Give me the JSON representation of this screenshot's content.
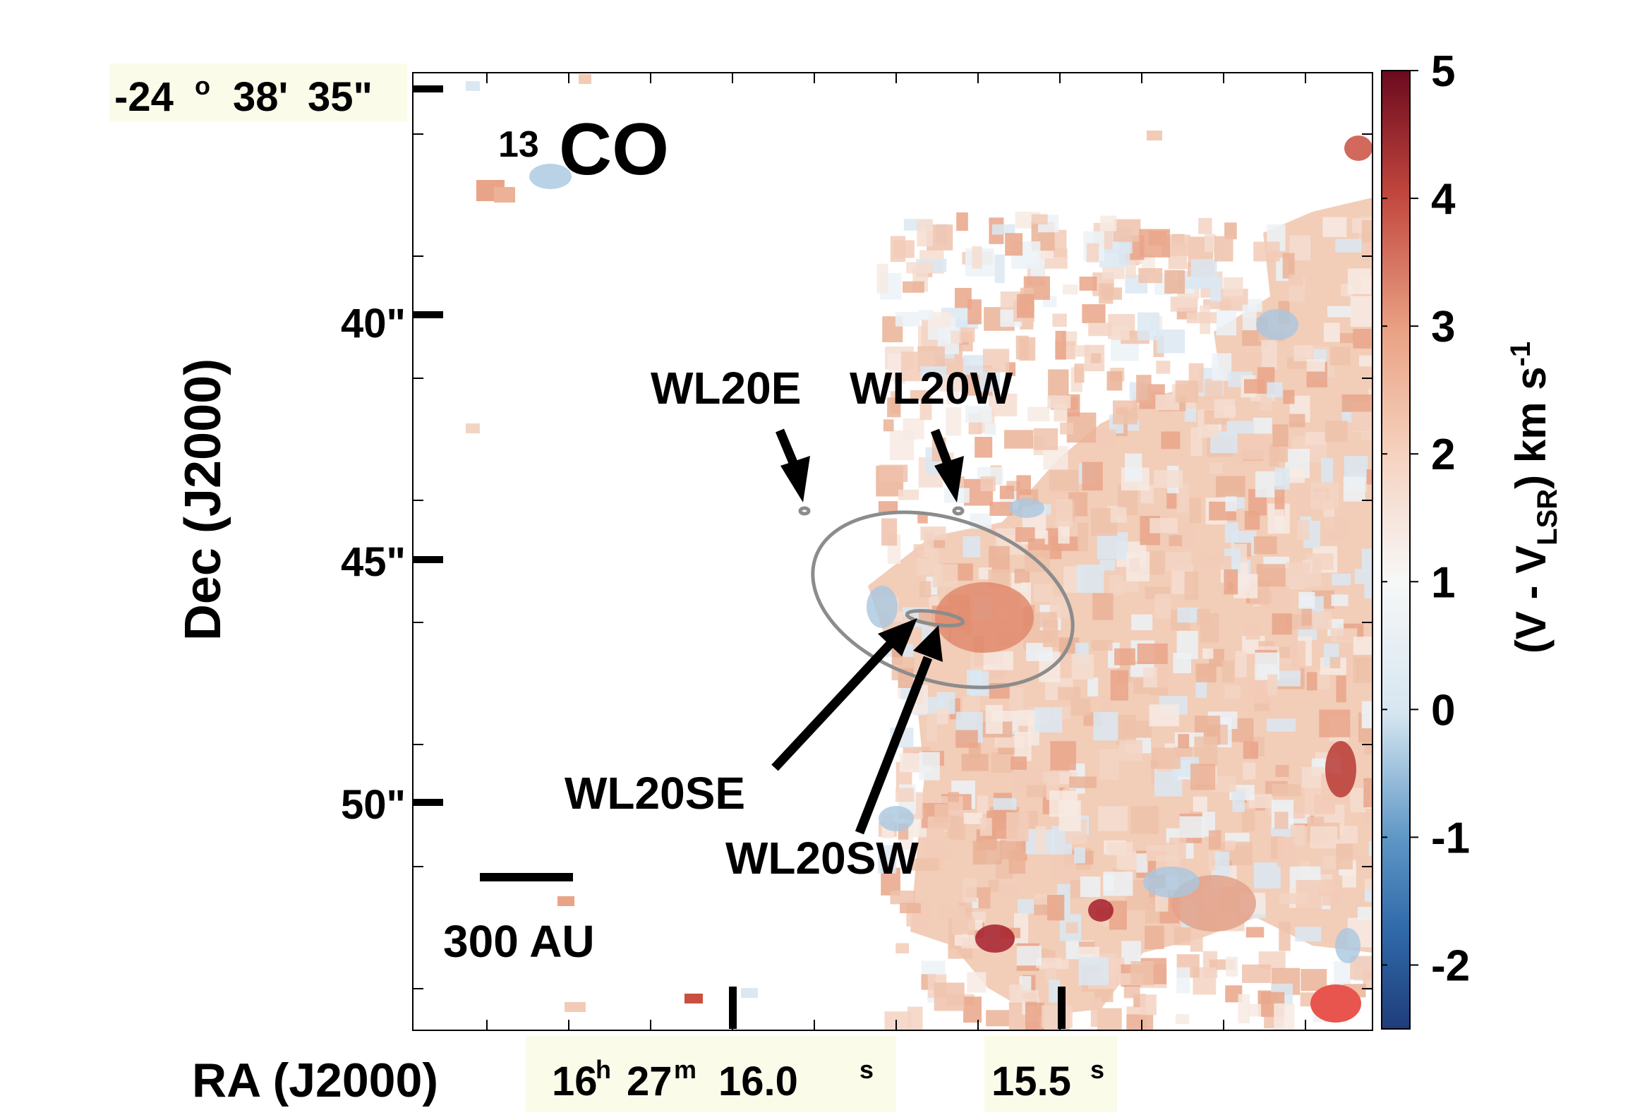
{
  "chart_data": {
    "type": "heatmap",
    "title": "",
    "map_label": {
      "superscript": "13",
      "text": "CO"
    },
    "xlabel": "RA (J2000)",
    "ylabel": "Dec (J2000)",
    "x_ticks": [
      {
        "value": "16.0s",
        "h": "16",
        "m": "27",
        "s": "16.0",
        "units": [
          "h",
          "m",
          "s"
        ]
      },
      {
        "value": "15.5s",
        "s": "15.5",
        "units": [
          "s"
        ]
      }
    ],
    "y_ticks": [
      {
        "deg": "-24",
        "amin": "38'",
        "asec": "35\"",
        "value": 35
      },
      {
        "text": "40\"",
        "value": 40
      },
      {
        "text": "45\"",
        "value": 45
      },
      {
        "text": "50\"",
        "value": 50
      }
    ],
    "ylim": [
      35,
      54.5
    ],
    "colorbar": {
      "label_parts": [
        "(V - V",
        "LSR",
        ") km s",
        "-1"
      ],
      "range": [
        -2.5,
        5
      ],
      "ticks": [
        -2,
        -1,
        0,
        1,
        2,
        3,
        4,
        5
      ],
      "tick_labels": [
        "-2",
        "-1",
        "0",
        "1",
        "2",
        "3",
        "4",
        "5"
      ],
      "colormap": "RdBu_r",
      "color_low": "#1f3d7a",
      "color_mid": "#f7f7f7",
      "color_high": "#6b0a1e"
    },
    "sources": [
      {
        "name": "WL20E",
        "dec": 44.1
      },
      {
        "name": "WL20W",
        "dec": 44.1
      },
      {
        "name": "WL20SE",
        "dec": 46.2
      },
      {
        "name": "WL20SW",
        "dec": 46.2
      }
    ],
    "scale_bar": {
      "label": "300 AU"
    },
    "beam": {
      "color": "#e8554e"
    },
    "contour_color": "#8c8c8c"
  }
}
